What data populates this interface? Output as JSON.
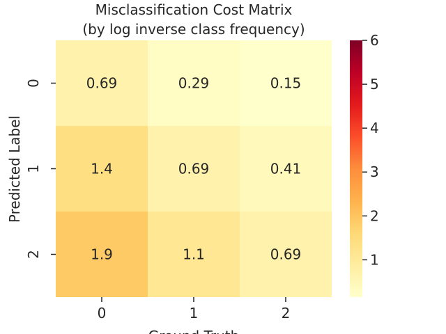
{
  "chart_data": {
    "type": "heatmap",
    "title_lines": [
      "Misclassification Cost Matrix",
      "(by log inverse class frequency)"
    ],
    "xlabel": "Ground Truth",
    "ylabel": "Predicted Label",
    "x_categories": [
      "0",
      "1",
      "2"
    ],
    "y_categories": [
      "0",
      "1",
      "2"
    ],
    "values": [
      [
        0.69,
        0.29,
        0.15
      ],
      [
        1.4,
        0.69,
        0.41
      ],
      [
        1.9,
        1.1,
        0.69
      ]
    ],
    "value_labels": [
      [
        "0.69",
        "0.29",
        "0.15"
      ],
      [
        "1.4",
        "0.69",
        "0.41"
      ],
      [
        "1.9",
        "1.1",
        "0.69"
      ]
    ],
    "colorbar": {
      "vmin": 0.15,
      "vmax": 6,
      "ticks": [
        1,
        2,
        3,
        4,
        5,
        6
      ],
      "tick_labels": [
        "1",
        "2",
        "3",
        "4",
        "5",
        "6"
      ],
      "colormap": "YlOrRd",
      "colors": [
        "#ffffcc",
        "#ffeda0",
        "#fed976",
        "#feb24c",
        "#fd8d3c",
        "#fc4e2a",
        "#e31a1c",
        "#bd0026",
        "#800026"
      ]
    },
    "grid": false,
    "legend": "colorbar-right"
  }
}
